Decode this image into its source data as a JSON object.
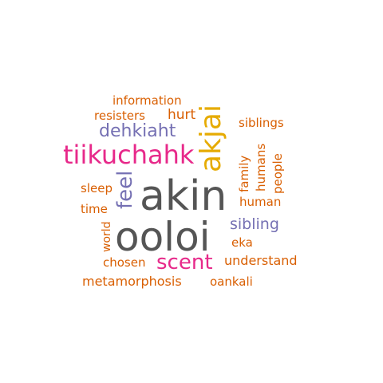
{
  "colors": {
    "dark_gray": "#555555",
    "magenta": "#E7298A",
    "gold": "#E6AB02",
    "purple": "#7570B3",
    "orange": "#D95F02"
  },
  "words": {
    "akin": "akin",
    "ooloi": "ooloi",
    "tiikuchahk": "tiikuchahk",
    "akjai": "akjai",
    "scent": "scent",
    "dehkiaht": "dehkiaht",
    "feel": "feel",
    "sibling": "sibling",
    "information": "information",
    "resisters": "resisters",
    "hurt": "hurt",
    "siblings": "siblings",
    "family": "family",
    "humans": "humans",
    "people": "people",
    "sleep": "sleep",
    "human": "human",
    "time": "time",
    "world": "world",
    "eka": "eka",
    "chosen": "chosen",
    "understand": "understand",
    "metamorphosis": "metamorphosis",
    "oankali": "oankali"
  }
}
